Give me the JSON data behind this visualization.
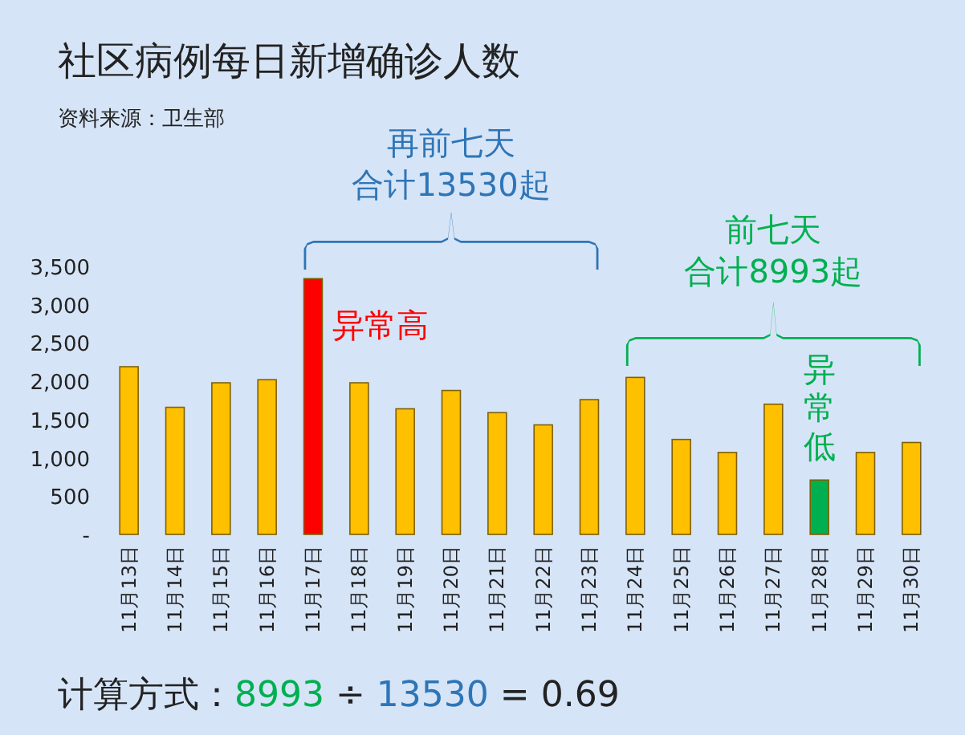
{
  "chart_data": {
    "type": "bar",
    "title": "社区病例每日新增确诊人数",
    "subtitle": "资料来源：卫生部",
    "categories": [
      "11月13日",
      "11月14日",
      "11月15日",
      "11月16日",
      "11月17日",
      "11月18日",
      "11月19日",
      "11月20日",
      "11月21日",
      "11月22日",
      "11月23日",
      "11月24日",
      "11月25日",
      "11月26日",
      "11月27日",
      "11月28日",
      "11月29日",
      "11月30日"
    ],
    "values": [
      2190,
      1660,
      1980,
      2020,
      3340,
      1980,
      1640,
      1880,
      1590,
      1430,
      1760,
      2050,
      1240,
      1070,
      1700,
      710,
      1070,
      1200
    ],
    "colors": [
      "#ffc000",
      "#ffc000",
      "#ffc000",
      "#ffc000",
      "#ff0000",
      "#ffc000",
      "#ffc000",
      "#ffc000",
      "#ffc000",
      "#ffc000",
      "#ffc000",
      "#ffc000",
      "#ffc000",
      "#ffc000",
      "#ffc000",
      "#00b050",
      "#ffc000",
      "#ffc000"
    ],
    "ylim": [
      0,
      3500
    ],
    "yticks": [
      {
        "value": 0,
        "label": "-"
      },
      500,
      {
        "value": 1000,
        "label": "1,000"
      },
      {
        "value": 1500,
        "label": "1,500"
      },
      {
        "value": 2000,
        "label": "2,000"
      },
      {
        "value": 2500,
        "label": "2,500"
      },
      {
        "value": 3000,
        "label": "3,000"
      },
      {
        "value": 3500,
        "label": "3,500"
      }
    ],
    "grid": false,
    "annotations": [
      "异常高",
      "异常低",
      "再前七天",
      "合计13530起",
      "前七天",
      "合计8993起",
      "计算方式：8993 ÷ 13530 = 0.69"
    ]
  }
}
